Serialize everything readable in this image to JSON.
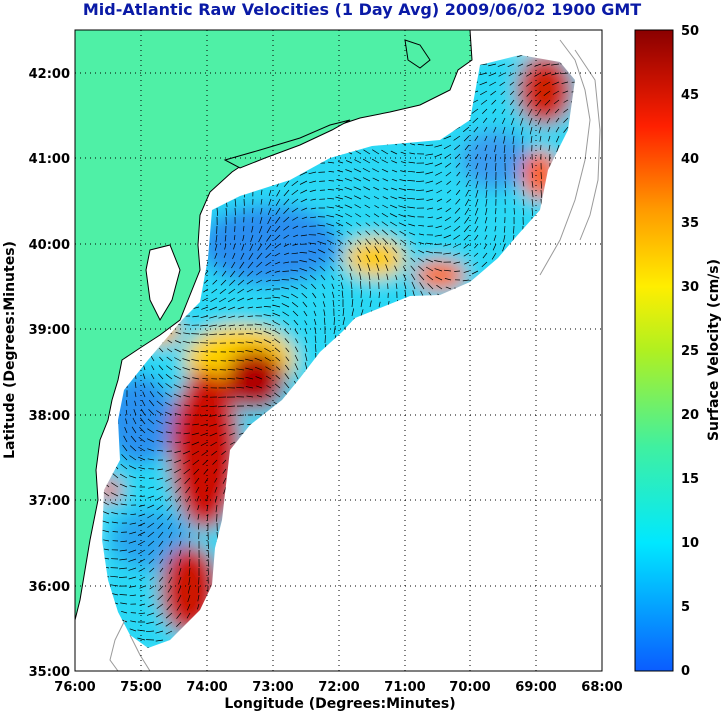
{
  "title": "Mid-Atlantic Raw Velocities (1 Day Avg) 2009/06/02 1900 GMT",
  "x_axis": {
    "label": "Longitude (Degrees:Minutes)",
    "ticks": [
      "76:00",
      "75:00",
      "74:00",
      "73:00",
      "72:00",
      "71:00",
      "70:00",
      "69:00",
      "68:00"
    ]
  },
  "y_axis": {
    "label": "Latitude (Degrees:Minutes)",
    "ticks": [
      "42:00",
      "41:00",
      "40:00",
      "39:00",
      "38:00",
      "37:00",
      "36:00",
      "35:00"
    ]
  },
  "colorbar": {
    "label": "Surface Velocity (cm/s)",
    "ticks": [
      "50",
      "45",
      "40",
      "35",
      "30",
      "25",
      "20",
      "15",
      "10",
      "5",
      "0"
    ],
    "range": [
      0,
      50
    ]
  },
  "colors": {
    "land": "#4ff0a6",
    "title": "#0a1aa6",
    "grid": "#000000"
  }
}
